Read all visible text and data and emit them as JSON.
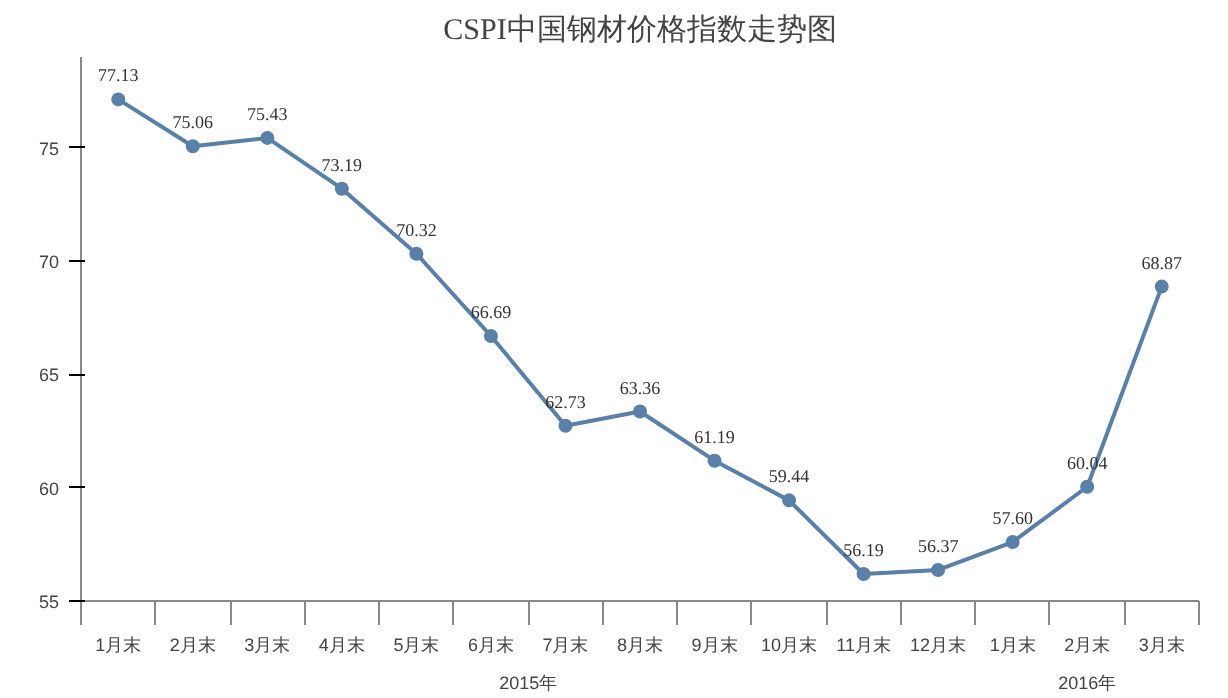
{
  "chart_data": {
    "type": "line",
    "title": "CSPI中国钢材价格指数走势图",
    "categories": [
      "1月末",
      "2月末",
      "3月末",
      "4月末",
      "5月末",
      "6月末",
      "7月末",
      "8月末",
      "9月末",
      "10月末",
      "11月末",
      "12月末",
      "1月末",
      "2月末",
      "3月末"
    ],
    "series": [
      {
        "color": "#5a7fa8",
        "values": [
          77.13,
          75.06,
          75.43,
          73.19,
          70.32,
          66.69,
          62.73,
          63.36,
          61.19,
          59.44,
          56.19,
          56.37,
          57.6,
          60.04,
          68.87
        ],
        "value_labels": [
          "77.13",
          "75.06",
          "75.43",
          "73.19",
          "70.32",
          "66.69",
          "62.73",
          "63.36",
          "61.19",
          "59.44",
          "56.19",
          "56.37",
          "57.60",
          "60.04",
          "68.87"
        ]
      }
    ],
    "ylim": [
      55,
      79
    ],
    "yticks": [
      55,
      60,
      65,
      70,
      75
    ],
    "grid": false,
    "marker": "circle",
    "line_style": "solid",
    "annotations": [
      "2015年",
      "2016年"
    ]
  }
}
